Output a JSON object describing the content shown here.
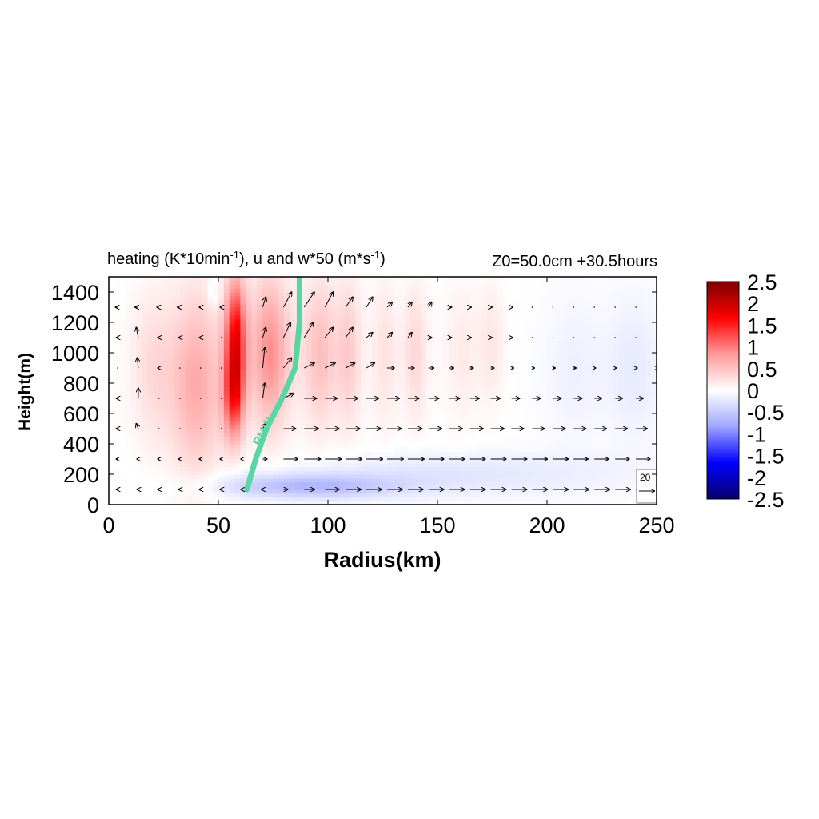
{
  "chart_data": {
    "type": "heatmap",
    "title": {
      "left_prefix": "heating (K*10min",
      "left_sup1": "-1",
      "left_mid": "), u and w*50 (m*s",
      "left_sup2": "-1",
      "left_suffix": ")",
      "right": "Z0=50.0cm  +30.5hours"
    },
    "xlabel": "Radius(km)",
    "ylabel": "Height(m)",
    "xlim": [
      0,
      250
    ],
    "ylim": [
      0,
      1500
    ],
    "xticks": [
      "0",
      "50",
      "100",
      "150",
      "200",
      "250"
    ],
    "yticks": [
      "0",
      "200",
      "400",
      "600",
      "800",
      "1000",
      "1200",
      "1400"
    ],
    "colorbar": {
      "range": [
        -2.5,
        2.5
      ],
      "ticks": [
        "2.5",
        "2",
        "1.5",
        "1",
        "0.5",
        "0",
        "-0.5",
        "-1",
        "-1.5",
        "-2",
        "-2.5"
      ],
      "colors": [
        "#08006e",
        "#0000ff",
        "#9fa6ff",
        "#ffffff",
        "#ff9a9a",
        "#ff0000",
        "#7d0000"
      ]
    },
    "rmw": {
      "label": "RMW",
      "color": "#5ad6a6",
      "points": [
        [
          63,
          100
        ],
        [
          67,
          300
        ],
        [
          72,
          500
        ],
        [
          79,
          700
        ],
        [
          85,
          900
        ],
        [
          87,
          1200
        ],
        [
          87,
          1500
        ]
      ]
    },
    "heating_field": {
      "description_levels": "estimated heating values by radius (km) and height band",
      "blobs": [
        {
          "r": 58,
          "z": 1100,
          "dr": 5,
          "dz": 400,
          "value": 1.6
        },
        {
          "r": 57,
          "z": 700,
          "dr": 5,
          "dz": 300,
          "value": 1.1
        },
        {
          "r": 40,
          "z": 800,
          "dr": 12,
          "dz": 600,
          "value": 0.7
        },
        {
          "r": 75,
          "z": 1000,
          "dr": 10,
          "dz": 500,
          "value": 0.9
        },
        {
          "r": 95,
          "z": 1000,
          "dr": 8,
          "dz": 500,
          "value": 0.6
        },
        {
          "r": 110,
          "z": 1000,
          "dr": 6,
          "dz": 500,
          "value": 0.45
        },
        {
          "r": 125,
          "z": 1000,
          "dr": 6,
          "dz": 500,
          "value": 0.35
        },
        {
          "r": 140,
          "z": 1000,
          "dr": 6,
          "dz": 450,
          "value": 0.3
        },
        {
          "r": 160,
          "z": 1000,
          "dr": 8,
          "dz": 450,
          "value": 0.25
        },
        {
          "r": 175,
          "z": 1050,
          "dr": 6,
          "dz": 400,
          "value": 0.2
        },
        {
          "r": 20,
          "z": 900,
          "dr": 10,
          "dz": 500,
          "value": 0.3
        },
        {
          "r": 90,
          "z": 120,
          "dr": 40,
          "dz": 80,
          "value": -0.6
        },
        {
          "r": 150,
          "z": 200,
          "dr": 80,
          "dz": 150,
          "value": -0.25
        },
        {
          "r": 230,
          "z": 900,
          "dr": 30,
          "dz": 500,
          "value": -0.2
        },
        {
          "r": 48,
          "z": 1400,
          "dr": 3,
          "dz": 100,
          "value": -0.25
        }
      ]
    },
    "wind_vectors": {
      "levels_m": [
        100,
        300,
        500,
        700,
        900,
        1100,
        1300
      ],
      "reference": {
        "label": "20",
        "speed": 20
      },
      "samples": [
        {
          "z": 1300,
          "u": [
            -2,
            -3,
            -2,
            -2,
            -1,
            -1,
            0,
            3,
            8,
            10,
            8,
            7,
            6,
            5,
            4,
            3,
            2,
            1,
            1,
            1,
            0,
            0,
            0,
            0,
            0,
            0,
            0
          ],
          "w": [
            0,
            0,
            0,
            0,
            0,
            0,
            0,
            0.2,
            0.3,
            0.3,
            0.3,
            0.2,
            0.2,
            0.1,
            0.1,
            0.1,
            0,
            0,
            0,
            0,
            0,
            0,
            0,
            0,
            0,
            0,
            0
          ]
        },
        {
          "z": 1100,
          "u": [
            -1,
            -2,
            -1,
            -1,
            -1,
            0,
            0,
            3,
            7,
            9,
            8,
            7,
            6,
            5,
            4,
            3,
            2,
            1,
            1,
            1,
            0,
            0,
            0,
            0,
            0,
            0,
            0
          ],
          "w": [
            0,
            0.2,
            0,
            0,
            0,
            0,
            0,
            0.2,
            0.3,
            0.3,
            0.2,
            0.2,
            0.1,
            0.1,
            0.1,
            0,
            0,
            0,
            0,
            0,
            0,
            0,
            0,
            0,
            0,
            0,
            0
          ]
        },
        {
          "z": 900,
          "u": [
            0,
            -1,
            -1,
            0,
            0,
            0,
            0,
            2,
            8,
            10,
            10,
            9,
            8,
            7,
            6,
            5,
            4,
            3,
            3,
            2,
            2,
            2,
            2,
            1,
            1,
            1,
            1
          ],
          "w": [
            0,
            0.2,
            0,
            0,
            0,
            0,
            0,
            0.4,
            0.2,
            0.1,
            0.1,
            0.1,
            0.1,
            0,
            0,
            0,
            0,
            0,
            0,
            0,
            0,
            0,
            0,
            0,
            0,
            0,
            0
          ]
        },
        {
          "z": 700,
          "u": [
            -1,
            0,
            0,
            0,
            0,
            0,
            0,
            2,
            10,
            12,
            12,
            12,
            12,
            12,
            11,
            10,
            10,
            9,
            9,
            8,
            8,
            8,
            8,
            7,
            7,
            7,
            7
          ],
          "w": [
            0,
            0.2,
            0,
            0,
            0,
            0,
            0,
            0.3,
            0.1,
            0,
            0,
            0,
            0,
            0,
            0,
            0,
            0,
            0,
            0,
            0,
            0,
            0,
            0,
            0,
            0,
            0,
            0
          ]
        },
        {
          "z": 500,
          "u": [
            -1,
            -2,
            0,
            0,
            0,
            0,
            0,
            3,
            12,
            14,
            14,
            14,
            14,
            14,
            14,
            13,
            13,
            13,
            13,
            12,
            12,
            12,
            12,
            12,
            12,
            11,
            11
          ],
          "w": [
            0,
            0.1,
            0,
            0,
            0,
            0,
            0,
            0.1,
            0,
            0,
            0,
            0,
            0,
            0,
            0,
            0,
            0,
            0,
            0,
            0,
            0,
            0,
            0,
            0,
            0,
            0,
            0
          ]
        },
        {
          "z": 300,
          "u": [
            -1,
            -1,
            -1,
            -1,
            -1,
            -1,
            -1,
            4,
            14,
            16,
            16,
            16,
            16,
            16,
            16,
            15,
            15,
            15,
            15,
            15,
            15,
            15,
            14,
            14,
            14,
            14,
            14
          ],
          "w": [
            0,
            0,
            0,
            0,
            0,
            0,
            0,
            0,
            0,
            0,
            0,
            0,
            0,
            0,
            0,
            0,
            0,
            0,
            0,
            0,
            0,
            0,
            0,
            0,
            0,
            0,
            0
          ]
        },
        {
          "z": 100,
          "u": [
            -1,
            -1,
            -1,
            -1,
            -1,
            -1,
            -1,
            -1,
            4,
            10,
            14,
            15,
            15,
            15,
            15,
            15,
            15,
            15,
            15,
            15,
            15,
            15,
            15,
            15,
            15,
            15,
            15
          ],
          "w": [
            0,
            0,
            0,
            0,
            0,
            0,
            0,
            0,
            0,
            0,
            0,
            0,
            0,
            0,
            0,
            0,
            0,
            0,
            0,
            0,
            0,
            0,
            0,
            0,
            0,
            0,
            0
          ]
        }
      ]
    }
  }
}
